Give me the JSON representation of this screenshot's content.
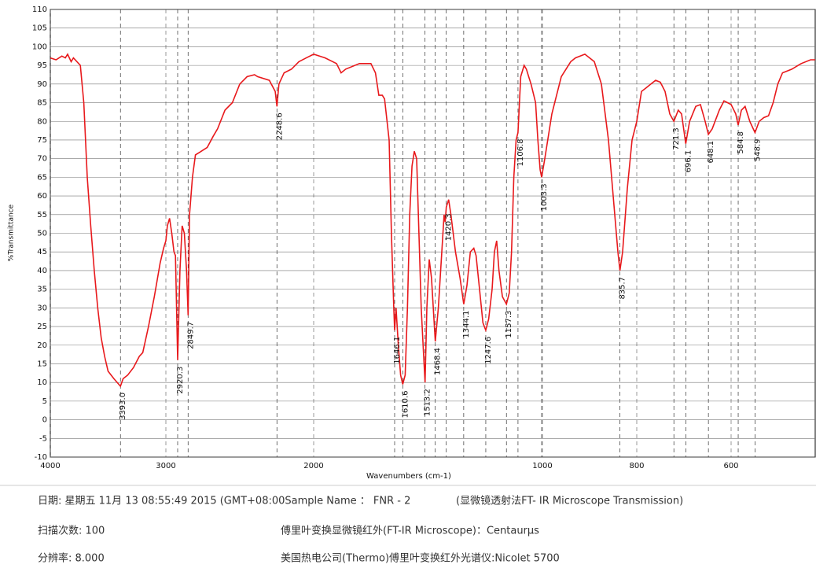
{
  "chart_data": {
    "type": "line",
    "xlabel": "Wavenumbers (cm-1)",
    "ylabel": "%Transmittance",
    "xlim": [
      4000,
      420
    ],
    "ylim": [
      -10,
      110
    ],
    "xticks": [
      4000,
      3000,
      2000,
      1000,
      800,
      600
    ],
    "yticks": [
      -10,
      -5,
      0,
      5,
      10,
      15,
      20,
      25,
      30,
      35,
      40,
      45,
      50,
      55,
      60,
      65,
      70,
      75,
      80,
      85,
      90,
      95,
      100,
      105,
      110
    ],
    "grid": true,
    "color": "#e8191c",
    "x": [
      4000,
      3950,
      3900,
      3870,
      3850,
      3820,
      3800,
      3740,
      3710,
      3680,
      3650,
      3620,
      3590,
      3560,
      3530,
      3500,
      3450,
      3393,
      3370,
      3330,
      3280,
      3230,
      3200,
      3150,
      3100,
      3050,
      3020,
      3000,
      2990,
      2975,
      2960,
      2945,
      2935,
      2920.3,
      2905,
      2890,
      2875,
      2860,
      2849.7,
      2840,
      2820,
      2800,
      2760,
      2720,
      2680,
      2650,
      2600,
      2550,
      2500,
      2450,
      2400,
      2380,
      2300,
      2260,
      2248.6,
      2235,
      2200,
      2150,
      2100,
      2050,
      2000,
      1950,
      1900,
      1880,
      1860,
      1800,
      1750,
      1730,
      1715,
      1700,
      1690,
      1670,
      1660,
      1650,
      1646.1,
      1640,
      1630,
      1620,
      1610.6,
      1600,
      1590,
      1580,
      1570,
      1560,
      1550,
      1540,
      1530,
      1520,
      1513.2,
      1505,
      1495,
      1485,
      1468.4,
      1455,
      1440,
      1430,
      1425,
      1420.3,
      1410,
      1400,
      1380,
      1360,
      1344.1,
      1330,
      1315,
      1300,
      1290,
      1275,
      1260,
      1247.6,
      1235,
      1220,
      1210,
      1200,
      1190,
      1175,
      1157.3,
      1145,
      1135,
      1125,
      1115,
      1106.8,
      1095,
      1080,
      1070,
      1060,
      1050,
      1030,
      1020,
      1010,
      1003.3,
      995,
      980,
      960,
      940,
      930,
      910,
      890,
      875,
      860,
      850,
      840,
      835.7,
      830,
      820,
      810,
      800,
      790,
      780,
      770,
      760,
      750,
      740,
      730,
      721.3,
      712,
      705,
      696.1,
      688,
      675,
      665,
      655,
      648.1,
      640,
      625,
      615,
      600,
      590,
      584.8,
      578,
      570,
      560,
      548.9,
      540,
      530,
      520,
      510,
      500,
      490,
      470,
      450,
      430,
      420
    ],
    "y": [
      97,
      96.5,
      97.5,
      97,
      98,
      96,
      97,
      95,
      85,
      65,
      52,
      40,
      30,
      22,
      17,
      13,
      11,
      9,
      11,
      12,
      14,
      17,
      18,
      25,
      33,
      42,
      46,
      48,
      52,
      54,
      50,
      45,
      44,
      16,
      40,
      52,
      50,
      40,
      28,
      55,
      65,
      71,
      72,
      73,
      76,
      78,
      83,
      85,
      90,
      92,
      92.5,
      92,
      91,
      88,
      84,
      90,
      93,
      94,
      96,
      97,
      98,
      97,
      95.5,
      93,
      94,
      95.5,
      95.5,
      93,
      87,
      87,
      86,
      75,
      50,
      30,
      24,
      30,
      20,
      12,
      9.5,
      12,
      30,
      55,
      68,
      72,
      70,
      50,
      30,
      18,
      10,
      30,
      43,
      38,
      21,
      30,
      45,
      55,
      53,
      57,
      59,
      55,
      45,
      38,
      31,
      36,
      45,
      46,
      44,
      35,
      26,
      24,
      27,
      35,
      45,
      48,
      40,
      33,
      31,
      34,
      45,
      65,
      75,
      77,
      92,
      95,
      94,
      92,
      90,
      85,
      75,
      67,
      65,
      70,
      82,
      92,
      96,
      97,
      98,
      96,
      90,
      75,
      60,
      45,
      40,
      45,
      62,
      75,
      80,
      88,
      89,
      90,
      91,
      90.5,
      88,
      82,
      80,
      83,
      82,
      74,
      80,
      84,
      84.5,
      80,
      76.5,
      78,
      83,
      85.5,
      84.5,
      82,
      79,
      83,
      84,
      80,
      77,
      80,
      81,
      81.5,
      85,
      90,
      93,
      94,
      95.5,
      96.5,
      96.5
    ],
    "peaks": {
      "x": [
        3393.0,
        2920.3,
        2849.7,
        2248.6,
        1646.1,
        1610.6,
        1513.2,
        1468.4,
        1420.3,
        1344.1,
        1247.6,
        1157.3,
        1106.8,
        1003.3,
        835.7,
        721.3,
        696.1,
        648.1,
        584.8,
        548.9
      ],
      "y": [
        9,
        16,
        28,
        84,
        24,
        9.5,
        10,
        21,
        57,
        31,
        24,
        31,
        77,
        65,
        40,
        80,
        74,
        76.5,
        79,
        77
      ],
      "labels": [
        "3393.0",
        "2920.3",
        "2849.7",
        "2248.6",
        "1646.1",
        "1610.6",
        "1513.2",
        "1468.4",
        "1420.3",
        "1344.1",
        "1247.6",
        "1157.3",
        "1106.8",
        "1003.3",
        "835.7",
        "721.3",
        "696.1",
        "648.1",
        "584.8",
        "548.9"
      ]
    }
  },
  "footer": {
    "date": "日期: 星期五 11月 13 08:55:49 2015 (GMT+08:00Sample Name ： FNR - 2",
    "method": "(显微镜透射法FT- IR Microscope Transmission)",
    "scans": "扫描次数: 100",
    "instrument": "傅里叶变换显微镜红外(FT-IR Microscope)：Centaurμs",
    "resolution": "分辨率: 8.000",
    "maker": "美国热电公司(Thermo)傅里叶变换红外光谱仪:Nicolet 5700"
  }
}
